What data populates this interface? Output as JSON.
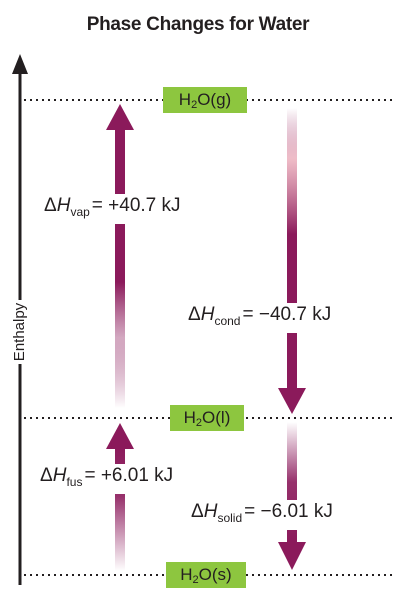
{
  "title": "Phase Changes for Water",
  "axis": {
    "y_label": "Enthalpy"
  },
  "levels": {
    "gas": {
      "formula_pre": "H",
      "formula_sub": "2",
      "formula_post": "O(g)"
    },
    "liquid": {
      "formula_pre": "H",
      "formula_sub": "2",
      "formula_post": "O(l)"
    },
    "solid": {
      "formula_pre": "H",
      "formula_sub": "2",
      "formula_post": "O(s)"
    }
  },
  "transitions": {
    "vap": {
      "delta": "Δ",
      "var": "H",
      "sub": "vap",
      "value": "= +40.7 kJ"
    },
    "cond": {
      "delta": "Δ",
      "var": "H",
      "sub": "cond",
      "value": "= −40.7 kJ"
    },
    "fus": {
      "delta": "Δ",
      "var": "H",
      "sub": "fus",
      "value": "= +6.01 kJ"
    },
    "solid": {
      "delta": "Δ",
      "var": "H",
      "sub": "solid",
      "value": "= −6.01 kJ"
    }
  },
  "colors": {
    "arrow": "#8b1a5b",
    "level_box": "#8dc63f",
    "text": "#231f20"
  }
}
